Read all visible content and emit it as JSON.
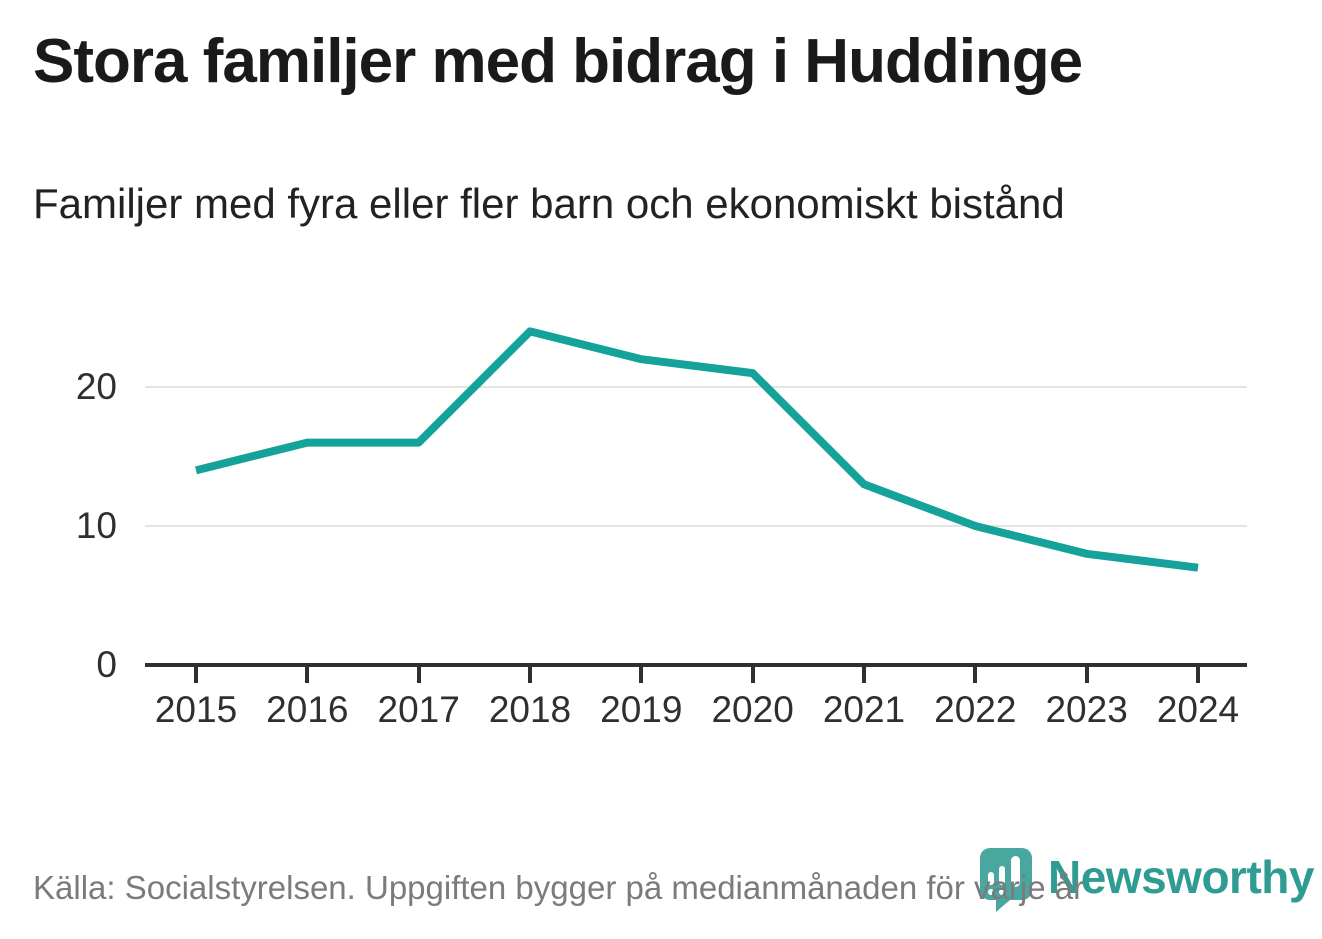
{
  "header": {
    "title": "Stora familjer med bidrag i Huddinge",
    "subtitle": "Familjer med fyra eller fler barn och ekonomiskt bistånd"
  },
  "chart_data": {
    "type": "line",
    "title": "Stora familjer med bidrag i Huddinge",
    "subtitle": "Familjer med fyra eller fler barn och ekonomiskt bistånd",
    "categories": [
      "2015",
      "2016",
      "2017",
      "2018",
      "2019",
      "2020",
      "2021",
      "2022",
      "2023",
      "2024"
    ],
    "values": [
      14,
      16,
      16,
      24,
      22,
      21,
      13,
      10,
      8,
      7
    ],
    "xlabel": "",
    "ylabel": "",
    "y_ticks": [
      0,
      10,
      20
    ],
    "ylim": [
      0,
      26
    ],
    "grid": "horizontal-only",
    "legend": "none",
    "line_color": "#14a29a"
  },
  "footer": {
    "source": "Källa: Socialstyrelsen. Uppgiften bygger på medianmånaden för varje år",
    "brand": "Newsworthy",
    "brand_text_color": "#2f9c94",
    "brand_mark_color": "#4aa79f"
  }
}
